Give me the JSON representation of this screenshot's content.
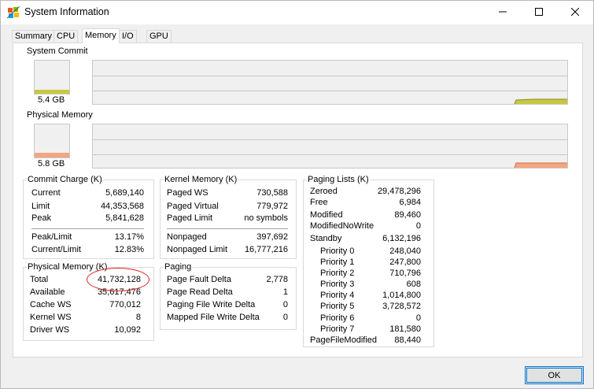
{
  "window": {
    "title": "System Information",
    "icon": "system-info-app-icon",
    "controls": [
      "minimize-icon",
      "maximize-icon",
      "close-icon"
    ]
  },
  "tabs": [
    {
      "label": "Summary",
      "active": false
    },
    {
      "label": "CPU",
      "active": false
    },
    {
      "label": "Memory",
      "active": true
    },
    {
      "label": "I/O",
      "active": false
    },
    {
      "label": "GPU",
      "active": false
    }
  ],
  "colors": {
    "commit": "#c8c840",
    "physical": "#f4a682",
    "annotation": "#e02020"
  },
  "system_commit": {
    "label": "System Commit",
    "value": "5.4 GB"
  },
  "physical_memory_graph": {
    "label": "Physical Memory",
    "value": "5.8 GB"
  },
  "commit_charge": {
    "title": "Commit Charge (K)",
    "rows": [
      {
        "label": "Current",
        "value": "5,689,140"
      },
      {
        "label": "Limit",
        "value": "44,353,568"
      },
      {
        "label": "Peak",
        "value": "5,841,628"
      }
    ],
    "rows2": [
      {
        "label": "Peak/Limit",
        "value": "13.17%"
      },
      {
        "label": "Current/Limit",
        "value": "12.83%"
      }
    ]
  },
  "kernel_memory": {
    "title": "Kernel Memory (K)",
    "rows": [
      {
        "label": "Paged WS",
        "value": "730,588"
      },
      {
        "label": "Paged Virtual",
        "value": "779,972"
      },
      {
        "label": "Paged Limit",
        "value": "no symbols"
      }
    ],
    "rows2": [
      {
        "label": "Nonpaged",
        "value": "397,692"
      },
      {
        "label": "Nonpaged Limit",
        "value": "16,777,216"
      }
    ]
  },
  "paging_lists": {
    "title": "Paging Lists (K)",
    "rows": [
      {
        "label": "Zeroed",
        "value": "29,478,296"
      },
      {
        "label": "Free",
        "value": "6,984"
      },
      {
        "label": "Modified",
        "value": "89,460"
      },
      {
        "label": "ModifiedNoWrite",
        "value": "0"
      },
      {
        "label": "Standby",
        "value": "6,132,196"
      },
      {
        "label": "Priority 0",
        "value": "248,040"
      },
      {
        "label": "Priority 1",
        "value": "247,800"
      },
      {
        "label": "Priority 2",
        "value": "710,796"
      },
      {
        "label": "Priority 3",
        "value": "608"
      },
      {
        "label": "Priority 4",
        "value": "1,014,800"
      },
      {
        "label": "Priority 5",
        "value": "3,728,572"
      },
      {
        "label": "Priority 6",
        "value": "0"
      },
      {
        "label": "Priority 7",
        "value": "181,580"
      },
      {
        "label": "PageFileModified",
        "value": "88,440"
      }
    ]
  },
  "physical_memory": {
    "title": "Physical Memory (K)",
    "rows": [
      {
        "label": "Total",
        "value": "41,732,128"
      },
      {
        "label": "Available",
        "value": "35,617,476"
      },
      {
        "label": "Cache WS",
        "value": "770,012"
      },
      {
        "label": "Kernel WS",
        "value": "8"
      },
      {
        "label": "Driver WS",
        "value": "10,092"
      }
    ]
  },
  "paging": {
    "title": "Paging",
    "rows": [
      {
        "label": "Page Fault Delta",
        "value": "2,778"
      },
      {
        "label": "Page Read Delta",
        "value": "1"
      },
      {
        "label": "Paging File Write Delta",
        "value": "0"
      },
      {
        "label": "Mapped File Write Delta",
        "value": "0"
      }
    ]
  },
  "footer": {
    "ok_label": "OK"
  }
}
